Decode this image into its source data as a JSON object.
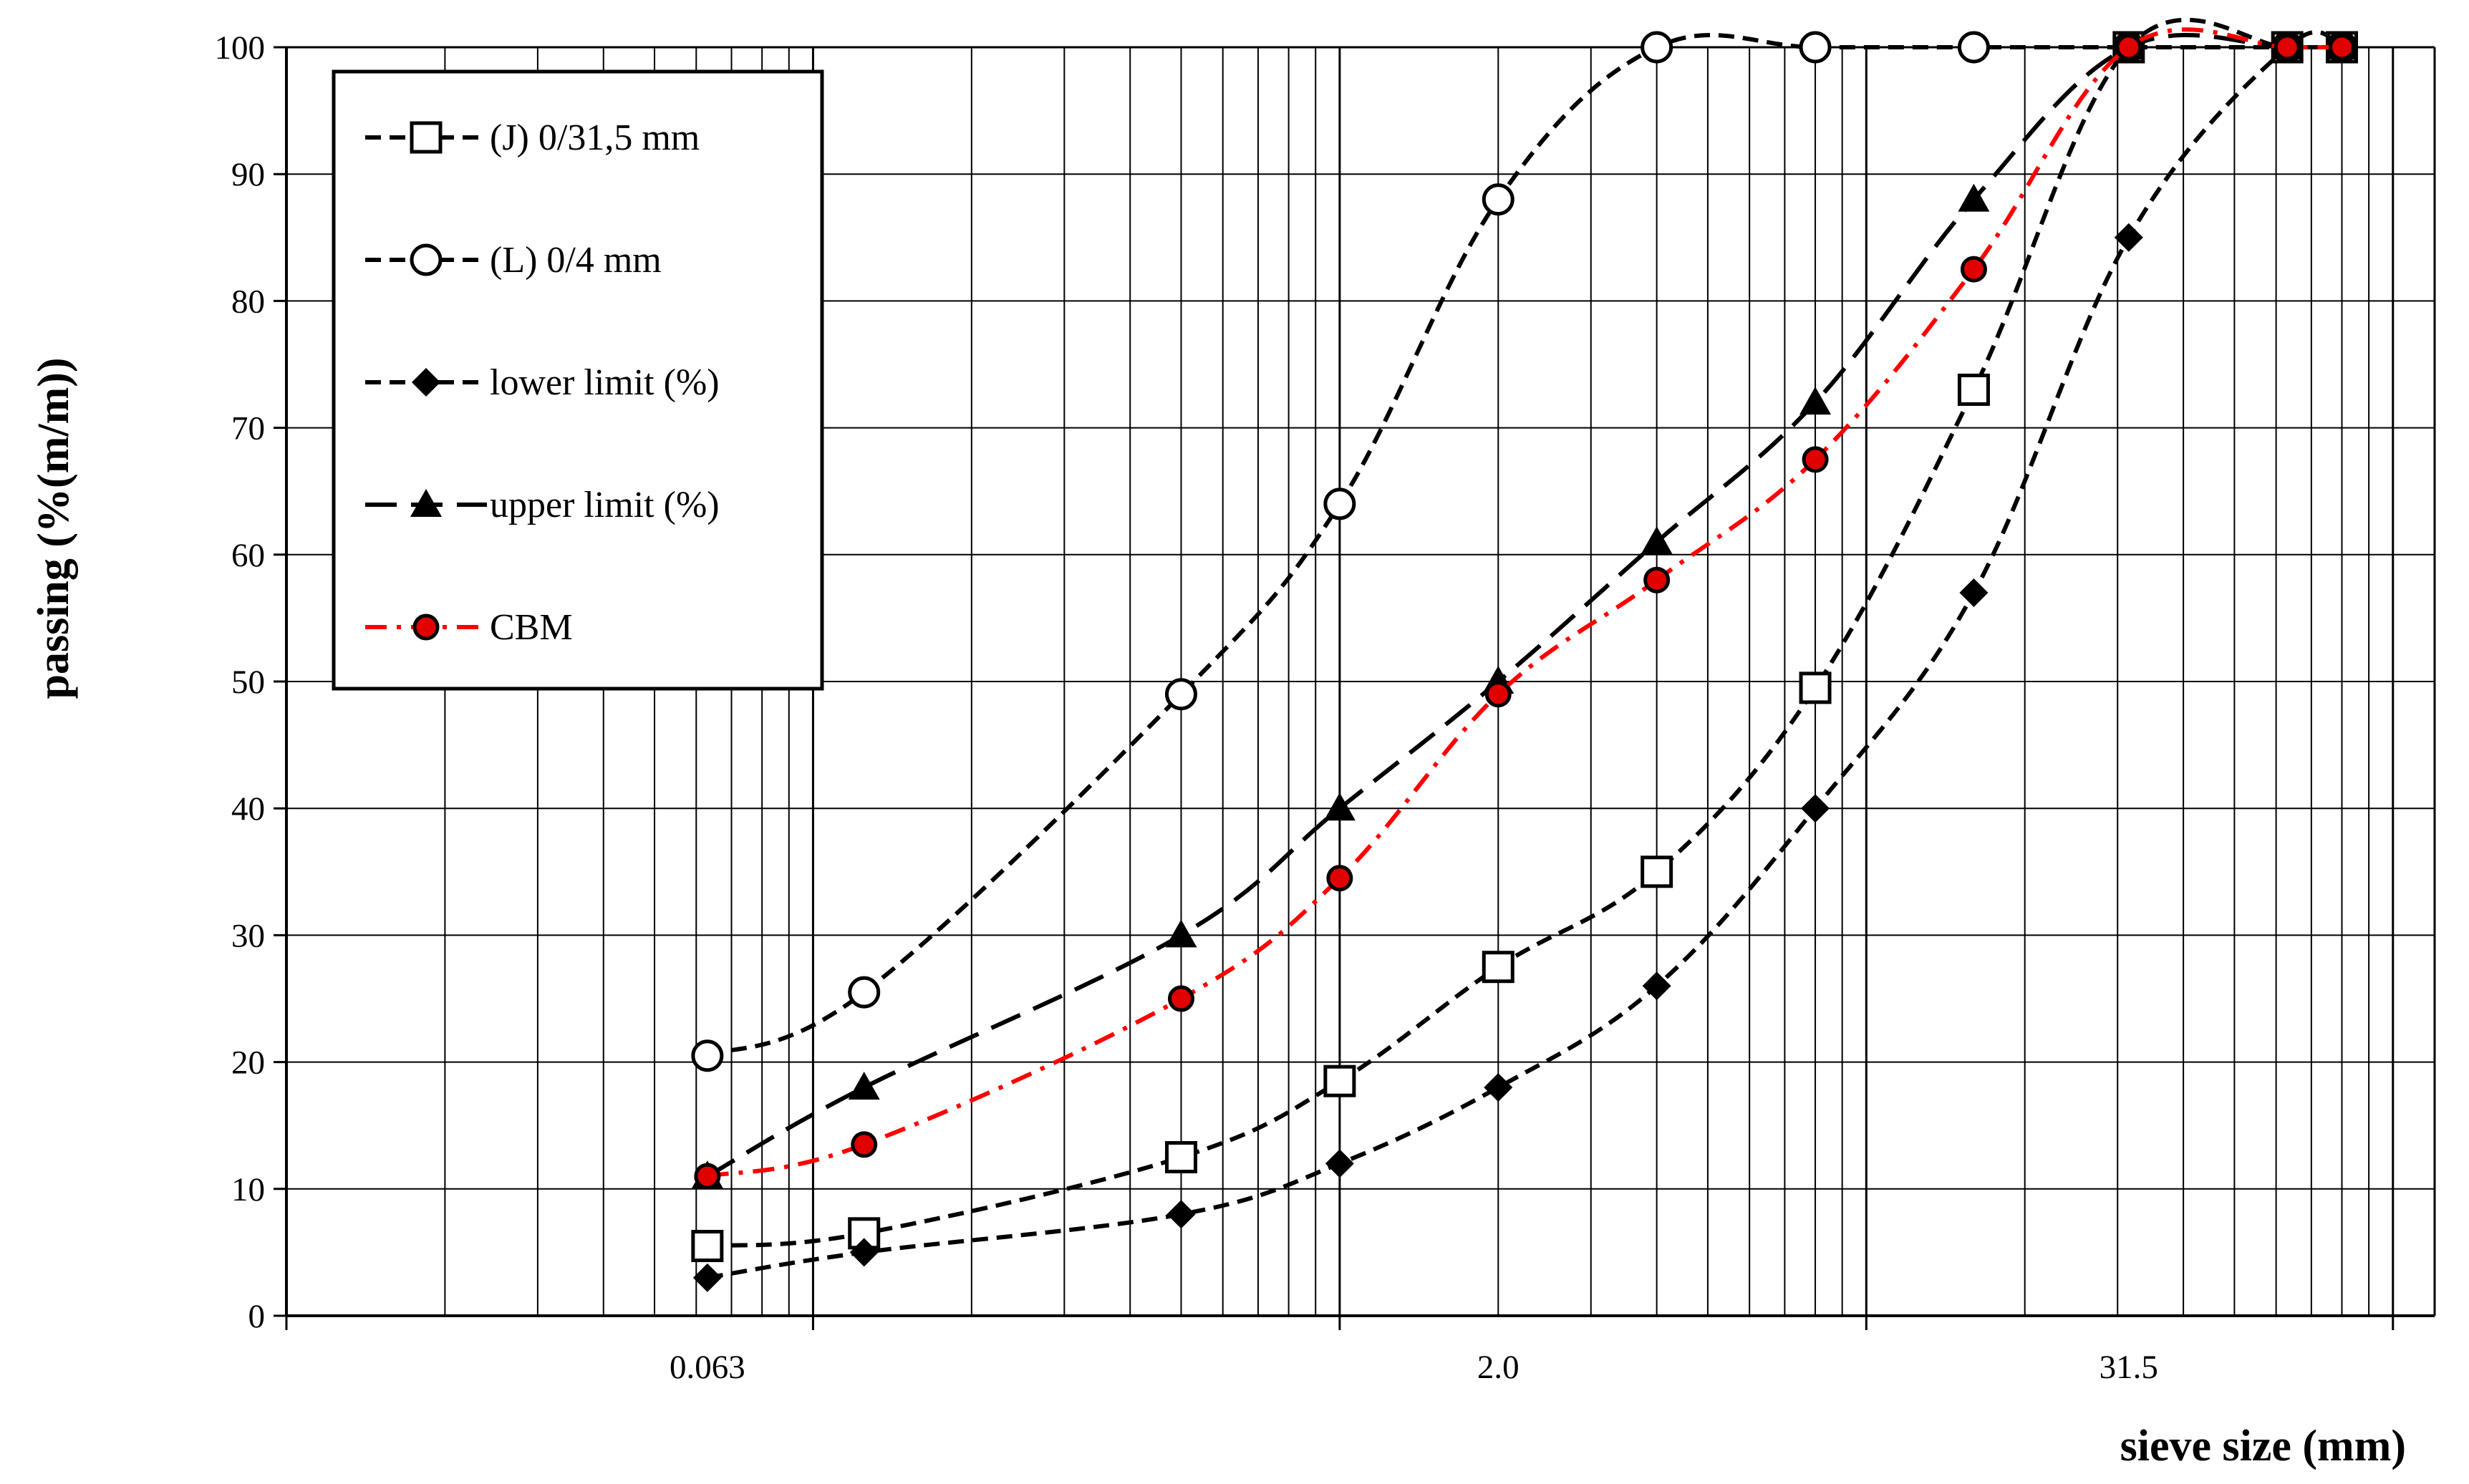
{
  "chart_data": {
    "type": "line",
    "title": "",
    "xlabel": "sieve size (mm)",
    "ylabel": "passing (%(m/m))",
    "x_scale": "log",
    "xlim": [
      0.01,
      120
    ],
    "ylim": [
      0,
      100
    ],
    "y_ticks": [
      0,
      10,
      20,
      30,
      40,
      50,
      60,
      70,
      80,
      90,
      100
    ],
    "x_tick_labels": [
      {
        "value": 0.063,
        "label": "0.063"
      },
      {
        "value": 2.0,
        "label": "2.0"
      },
      {
        "value": 31.5,
        "label": "31.5"
      }
    ],
    "grid": true,
    "legend_position": "top-left",
    "series": [
      {
        "name": "(J) 0/31,5 mm",
        "marker": "square-open",
        "line": "dashed",
        "color": "#000000",
        "x": [
          0.063,
          0.125,
          0.5,
          1.0,
          2.0,
          4.0,
          8.0,
          16.0,
          31.5,
          63.0,
          80.0
        ],
        "y": [
          5.5,
          6.5,
          12.5,
          18.5,
          27.5,
          35.0,
          49.5,
          73.0,
          100,
          100,
          100
        ]
      },
      {
        "name": "(L) 0/4 mm",
        "marker": "circle-open",
        "line": "dashed",
        "color": "#000000",
        "x": [
          0.063,
          0.125,
          0.5,
          1.0,
          2.0,
          4.0,
          8.0,
          16.0,
          31.5,
          63.0,
          80.0
        ],
        "y": [
          20.5,
          25.5,
          49.0,
          64.0,
          88.0,
          100,
          100,
          100,
          100,
          100,
          100
        ]
      },
      {
        "name": "lower limit  (%)",
        "marker": "diamond-filled",
        "line": "dashed",
        "color": "#000000",
        "x": [
          0.063,
          0.125,
          0.5,
          1.0,
          2.0,
          4.0,
          8.0,
          16.0,
          31.5,
          63.0,
          80.0
        ],
        "y": [
          3.0,
          5.0,
          8.0,
          12.0,
          18.0,
          26.0,
          40.0,
          57.0,
          85.0,
          100,
          100
        ]
      },
      {
        "name": "upper limit (%)",
        "marker": "triangle-filled",
        "line": "long-dash",
        "color": "#000000",
        "x": [
          0.063,
          0.125,
          0.5,
          1.0,
          2.0,
          4.0,
          8.0,
          16.0,
          31.5,
          63.0,
          80.0
        ],
        "y": [
          11.0,
          18.0,
          30.0,
          40.0,
          50.0,
          61.0,
          72.0,
          88.0,
          100,
          100,
          100
        ]
      },
      {
        "name": "CBM",
        "marker": "circle-red-filled",
        "line": "dash-dot",
        "color": "#ff0000",
        "x": [
          0.063,
          0.125,
          0.5,
          1.0,
          2.0,
          4.0,
          8.0,
          16.0,
          31.5,
          63.0,
          80.0
        ],
        "y": [
          11.0,
          13.5,
          25.0,
          34.5,
          49.0,
          58.0,
          67.5,
          82.5,
          100,
          100,
          100
        ]
      }
    ]
  }
}
